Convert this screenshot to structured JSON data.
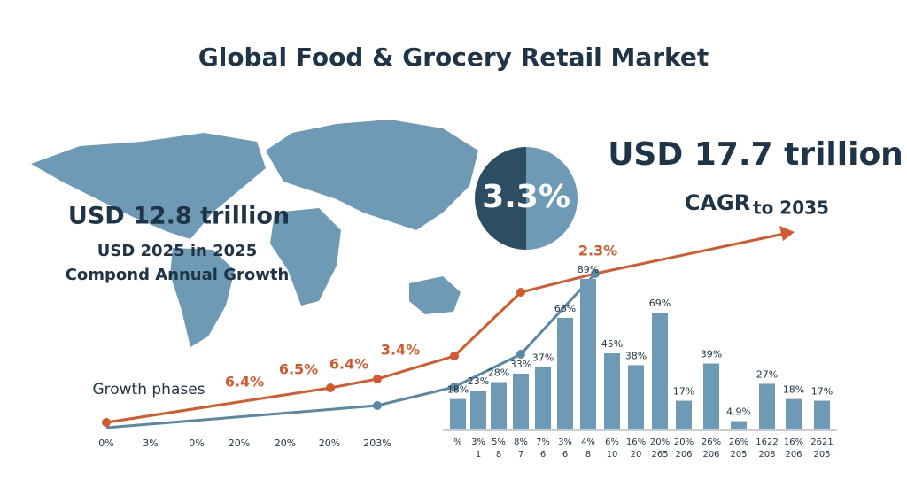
{
  "title": "Global Food & Grocery Retail Market",
  "left": {
    "value": "USD 12.8 trillion",
    "line1": "USD 2025 in 2025",
    "line2": "Compond Annual Growth"
  },
  "badge": "3.3%",
  "right": {
    "value": "USD 17.7 trillion",
    "cagr": "CAGR",
    "to": "to 2035"
  },
  "growth": {
    "label": "Growth phases",
    "point_labels": [
      "6.4%",
      "6.5%",
      "6.4%",
      "3.4%",
      "2.3%"
    ],
    "x_labels": [
      "0%",
      "3%",
      "0%",
      "20%",
      "20%",
      "20%",
      "203%"
    ]
  },
  "chart_data": {
    "type": "bar",
    "color": "#6f9ab5",
    "categories": [
      [
        "%"
      ],
      [
        "3%",
        "1"
      ],
      [
        "5%",
        "8"
      ],
      [
        "8%",
        "7"
      ],
      [
        "7%",
        "6"
      ],
      [
        "3%",
        "6"
      ],
      [
        "4%",
        "8"
      ],
      [
        "6%",
        "10"
      ],
      [
        "16%",
        "20"
      ],
      [
        "20%",
        "265"
      ],
      [
        "20%",
        "206"
      ],
      [
        "26%",
        "206"
      ],
      [
        "26%",
        "205"
      ],
      [
        "1622",
        "208"
      ],
      [
        "16%",
        "206"
      ],
      [
        "2621",
        "205"
      ]
    ],
    "values": [
      18,
      23,
      28,
      33,
      37,
      66,
      89,
      45,
      38,
      69,
      17,
      39,
      4.9,
      27,
      18,
      17
    ],
    "value_labels": [
      "18%",
      "23%",
      "28%",
      "33%",
      "37%",
      "66%",
      "89%",
      "45%",
      "38%",
      "69%",
      "17%",
      "39%",
      "4.9%",
      "27%",
      "18%",
      "17%"
    ]
  }
}
